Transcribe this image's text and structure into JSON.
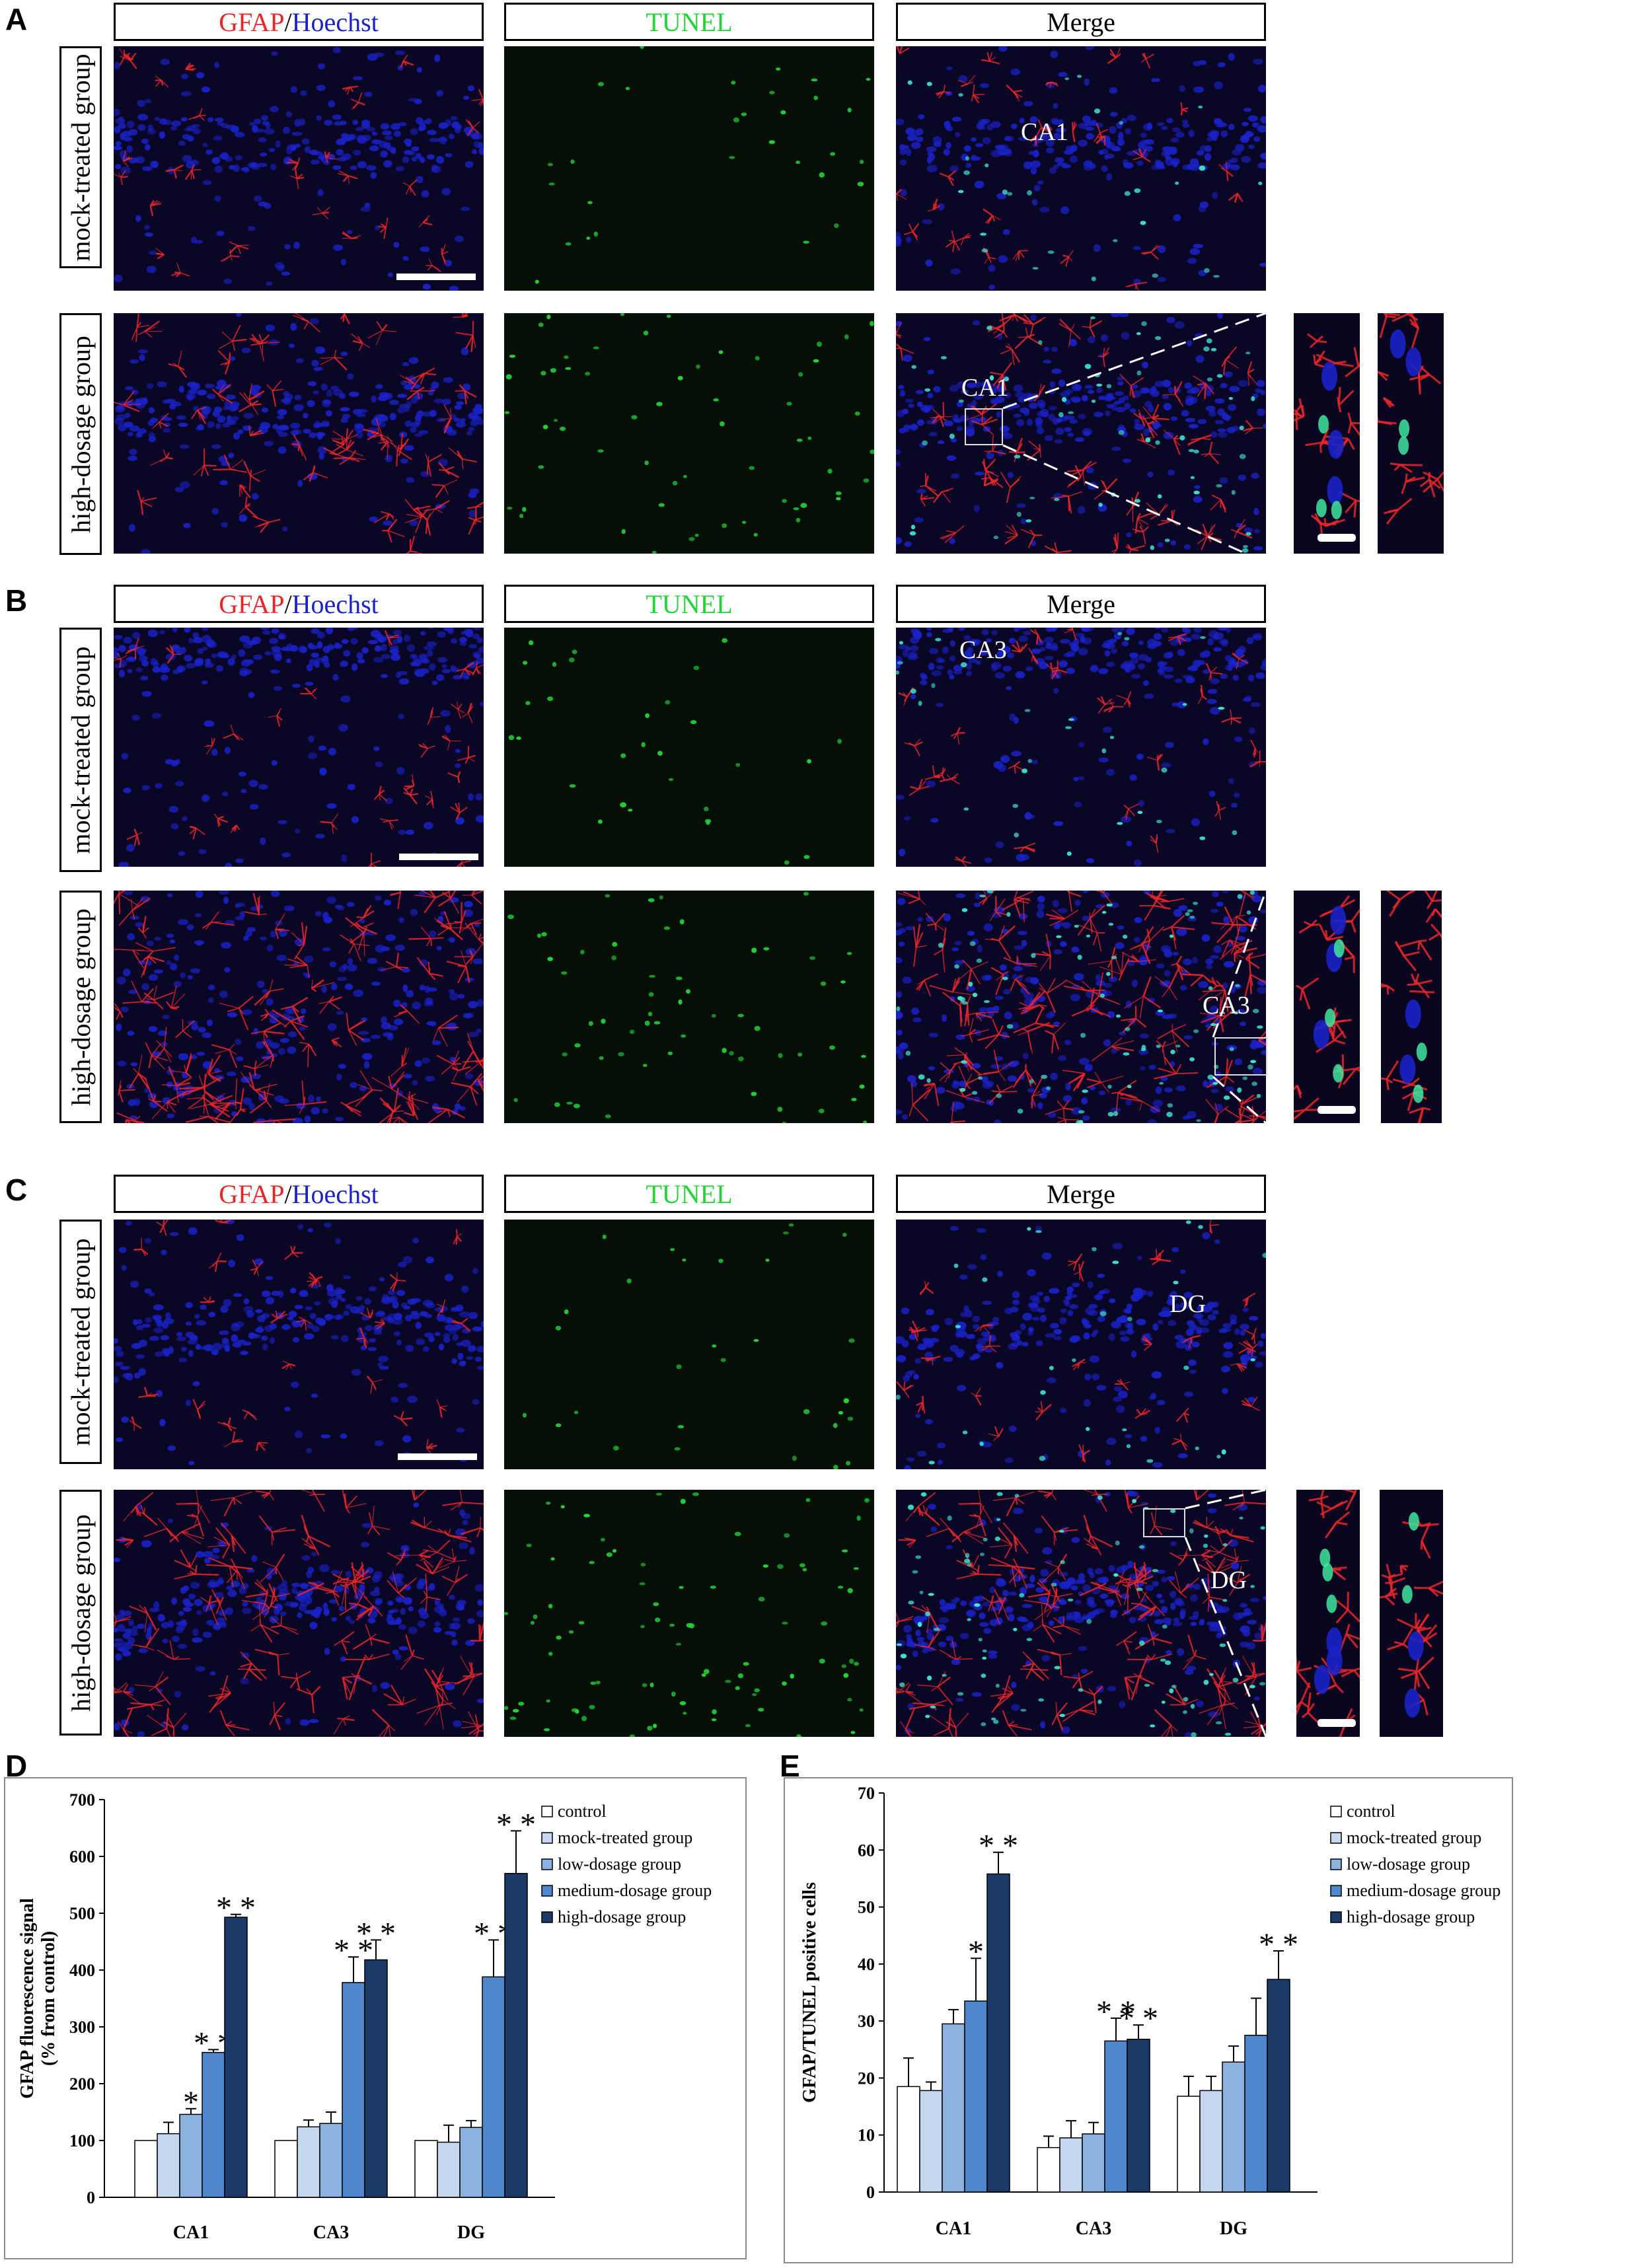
{
  "figure": {
    "panel_letters": [
      "A",
      "B",
      "C",
      "D",
      "E"
    ],
    "column_headers": {
      "gfap": "GFAP",
      "separator": "/",
      "hoechst": "Hoechst",
      "tunel": "TUNEL",
      "merge": "Merge"
    },
    "row_labels": {
      "mock": "mock-treated group",
      "high": "high-dosage group"
    },
    "region_labels": {
      "A_mock": "CA1",
      "A_high": "CA1",
      "B_mock": "CA3",
      "B_high": "CA3",
      "C_mock": "DG",
      "C_high": "DG"
    },
    "colors": {
      "gfap_red": "#e8262a",
      "hoechst_blue": "#1a22c8",
      "tunel_green": "#22d43a",
      "bar_control": "#ffffff",
      "bar_mock": "#c6d8ef",
      "bar_low": "#8cb3e0",
      "bar_medium": "#4f86cc",
      "bar_high": "#1c3a68"
    }
  },
  "chart_data": [
    {
      "panel": "D",
      "type": "bar",
      "categories": [
        "CA1",
        "CA3",
        "DG"
      ],
      "ylabel": "GFAP fluorescence signal\n(% from control)",
      "ylabel_line1": "GFAP fluorescence signal",
      "ylabel_line2": "(% from control)",
      "ylim": [
        0,
        700
      ],
      "yticks": [
        0,
        100,
        200,
        300,
        400,
        500,
        600,
        700
      ],
      "legend": "top-right",
      "series": [
        {
          "name": "control",
          "values": [
            100,
            100,
            100
          ],
          "errors": [
            0,
            0,
            0
          ],
          "stars": [
            "",
            "",
            ""
          ]
        },
        {
          "name": "mock-treated group",
          "values": [
            112,
            124,
            97
          ],
          "errors": [
            20,
            12,
            30
          ],
          "stars": [
            "",
            "",
            ""
          ]
        },
        {
          "name": "low-dosage group",
          "values": [
            146,
            130,
            123
          ],
          "errors": [
            10,
            20,
            12
          ],
          "stars": [
            "*",
            "",
            ""
          ]
        },
        {
          "name": "medium-dosage group",
          "values": [
            255,
            378,
            388
          ],
          "errors": [
            5,
            45,
            65
          ],
          "stars": [
            "**",
            "**",
            "**"
          ]
        },
        {
          "name": "high-dosage group",
          "values": [
            493,
            418,
            570
          ],
          "errors": [
            5,
            35,
            75
          ],
          "stars": [
            "**",
            "**",
            "**"
          ]
        }
      ]
    },
    {
      "panel": "E",
      "type": "bar",
      "categories": [
        "CA1",
        "CA3",
        "DG"
      ],
      "ylabel": "GFAP/TUNEL positive cells",
      "ylim": [
        0,
        70
      ],
      "yticks": [
        0,
        10,
        20,
        30,
        40,
        50,
        60,
        70
      ],
      "legend": "top-right",
      "series": [
        {
          "name": "control",
          "values": [
            18.5,
            7.8,
            16.8
          ],
          "errors": [
            5,
            2,
            3.5
          ],
          "stars": [
            "",
            "",
            ""
          ]
        },
        {
          "name": "mock-treated group",
          "values": [
            17.8,
            9.5,
            17.8
          ],
          "errors": [
            1.5,
            3,
            2.5
          ],
          "stars": [
            "",
            "",
            ""
          ]
        },
        {
          "name": "low-dosage group",
          "values": [
            29.5,
            10.2,
            22.8
          ],
          "errors": [
            2.5,
            2,
            2.8
          ],
          "stars": [
            "",
            "",
            ""
          ]
        },
        {
          "name": "medium-dosage group",
          "values": [
            33.5,
            26.5,
            27.5
          ],
          "errors": [
            7.5,
            4,
            6.5
          ],
          "stars": [
            "*",
            "**",
            ""
          ]
        },
        {
          "name": "high-dosage group",
          "values": [
            55.8,
            26.8,
            37.3
          ],
          "errors": [
            3.8,
            2.5,
            5
          ],
          "stars": [
            "**",
            "**",
            "**"
          ]
        }
      ]
    }
  ]
}
